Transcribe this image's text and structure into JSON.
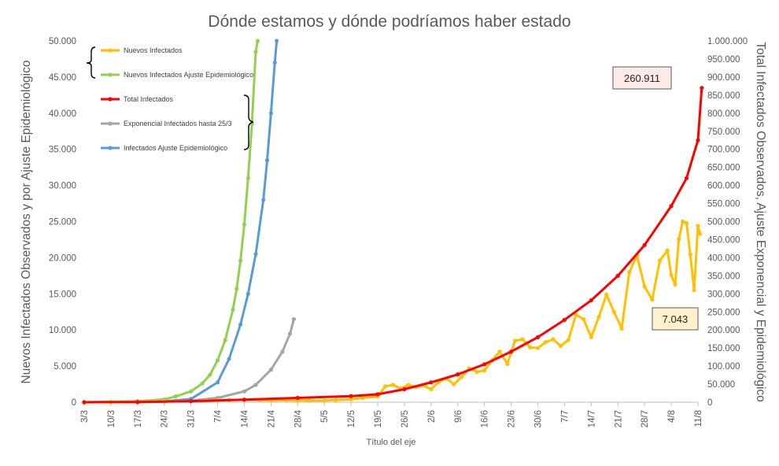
{
  "chart_data": {
    "type": "line",
    "title": "Dónde estamos y dónde podríamos haber estado",
    "xlabel": "Título del eje",
    "ylabel_left": "Nuevos Infectados Observados y por Ajuste Epidemiológico",
    "ylabel_right": "Total Infectados Observados, Ajuste Exponencial y Epidemiológico",
    "x_start": "2020-03-03",
    "x_end": "2020-08-11",
    "x_tick_labels": [
      "3/3",
      "10/3",
      "17/3",
      "24/3",
      "31/3",
      "7/4",
      "14/4",
      "21/4",
      "28/4",
      "5/5",
      "12/5",
      "19/5",
      "26/5",
      "2/6",
      "9/6",
      "16/6",
      "23/6",
      "30/6",
      "7/7",
      "14/7",
      "21/7",
      "28/7",
      "4/8",
      "11/8"
    ],
    "ylim_left": [
      0,
      50000
    ],
    "ylim_right": [
      0,
      1000000
    ],
    "y_ticks_left": [
      "0",
      "5.000",
      "10.000",
      "15.000",
      "20.000",
      "25.000",
      "30.000",
      "35.000",
      "40.000",
      "45.000",
      "50.000"
    ],
    "y_ticks_right": [
      "0",
      "50.000",
      "100.000",
      "150.000",
      "200.000",
      "250.000",
      "300.000",
      "350.000",
      "400.000",
      "450.000",
      "500.000",
      "550.000",
      "600.000",
      "650.000",
      "700.000",
      "750.000",
      "800.000",
      "850.000",
      "900.000",
      "950.000",
      "1.000.000"
    ],
    "legend_position": "top-left",
    "annotations": [
      {
        "text": "260.911",
        "series": "Total Infectados",
        "fill": "#fde9e7"
      },
      {
        "text": "7.043",
        "series": "Nuevos Infectados",
        "fill": "#fff2cc"
      }
    ],
    "series": [
      {
        "name": "Nuevos Infectados",
        "color": "#ffc000",
        "axis": "left",
        "points": [
          [
            "3/3",
            0
          ],
          [
            "10/3",
            30
          ],
          [
            "17/3",
            60
          ],
          [
            "24/3",
            110
          ],
          [
            "31/3",
            150
          ],
          [
            "4/4",
            200
          ],
          [
            "7/4",
            280
          ],
          [
            "10/4",
            300
          ],
          [
            "14/4",
            350
          ],
          [
            "18/4",
            300
          ],
          [
            "21/4",
            250
          ],
          [
            "25/4",
            280
          ],
          [
            "28/4",
            250
          ],
          [
            "1/5",
            230
          ],
          [
            "5/5",
            250
          ],
          [
            "8/5",
            300
          ],
          [
            "12/5",
            400
          ],
          [
            "15/5",
            600
          ],
          [
            "19/5",
            800
          ],
          [
            "21/5",
            2200
          ],
          [
            "23/5",
            2400
          ],
          [
            "25/5",
            1900
          ],
          [
            "27/5",
            2400
          ],
          [
            "29/5",
            2100
          ],
          [
            "31/5",
            2300
          ],
          [
            "2/6",
            1800
          ],
          [
            "4/6",
            2800
          ],
          [
            "6/6",
            3300
          ],
          [
            "8/6",
            2500
          ],
          [
            "10/6",
            3500
          ],
          [
            "12/6",
            4700
          ],
          [
            "14/6",
            4200
          ],
          [
            "16/6",
            4400
          ],
          [
            "18/6",
            5800
          ],
          [
            "20/6",
            7000
          ],
          [
            "22/6",
            5300
          ],
          [
            "24/6",
            8500
          ],
          [
            "26/6",
            8700
          ],
          [
            "28/6",
            7600
          ],
          [
            "30/6",
            7500
          ],
          [
            "2/7",
            8300
          ],
          [
            "4/7",
            8700
          ],
          [
            "6/7",
            7800
          ],
          [
            "8/7",
            8600
          ],
          [
            "10/7",
            12100
          ],
          [
            "12/7",
            11500
          ],
          [
            "14/7",
            9000
          ],
          [
            "16/7",
            11800
          ],
          [
            "18/7",
            14900
          ],
          [
            "20/7",
            12500
          ],
          [
            "22/7",
            10200
          ],
          [
            "24/7",
            18000
          ],
          [
            "26/7",
            20300
          ],
          [
            "28/7",
            16000
          ],
          [
            "30/7",
            14200
          ],
          [
            "1/8",
            19600
          ],
          [
            "3/8",
            21000
          ],
          [
            "4/8",
            17600
          ],
          [
            "5/8",
            16300
          ],
          [
            "6/8",
            22600
          ],
          [
            "7/8",
            25000
          ],
          [
            "8/8",
            24800
          ],
          [
            "9/8",
            20400
          ],
          [
            "10/8",
            15500
          ],
          [
            "11/8",
            24400
          ],
          [
            "11/8b",
            23300
          ]
        ]
      },
      {
        "name": "Nuevos Infectados Ajuste Epidemiológico",
        "color": "#92d050",
        "axis": "left",
        "points": [
          [
            "3/3",
            0
          ],
          [
            "10/3",
            60
          ],
          [
            "17/3",
            150
          ],
          [
            "24/3",
            400
          ],
          [
            "27/3",
            800
          ],
          [
            "31/3",
            1500
          ],
          [
            "3/4",
            2600
          ],
          [
            "5/4",
            3800
          ],
          [
            "7/4",
            5800
          ],
          [
            "9/4",
            8600
          ],
          [
            "11/4",
            12800
          ],
          [
            "12/4",
            15700
          ],
          [
            "13/4",
            19600
          ],
          [
            "14/4",
            24600
          ],
          [
            "15/4",
            31000
          ],
          [
            "16/4",
            38500
          ],
          [
            "17/4",
            48500
          ],
          [
            "17.5/4",
            50000
          ]
        ]
      },
      {
        "name": "Total Infectados",
        "color": "#ff0000",
        "axis": "right",
        "points": [
          [
            "3/3",
            0
          ],
          [
            "17/3",
            500
          ],
          [
            "31/3",
            3000
          ],
          [
            "14/4",
            7000
          ],
          [
            "28/4",
            12000
          ],
          [
            "12/5",
            17000
          ],
          [
            "19/5",
            22000
          ],
          [
            "26/5",
            36000
          ],
          [
            "2/6",
            55000
          ],
          [
            "9/6",
            77000
          ],
          [
            "16/6",
            105000
          ],
          [
            "23/6",
            140000
          ],
          [
            "30/6",
            180000
          ],
          [
            "7/7",
            228000
          ],
          [
            "14/7",
            282000
          ],
          [
            "21/7",
            350000
          ],
          [
            "28/7",
            435000
          ],
          [
            "4/8",
            543000
          ],
          [
            "8/8",
            620000
          ],
          [
            "11/8",
            725000
          ],
          [
            "12/8",
            870000
          ]
        ]
      },
      {
        "name": "Exponencial Infectados hasta 25/3",
        "color": "#a5a5a5",
        "axis": "right",
        "points": [
          [
            "3/3",
            0
          ],
          [
            "17/3",
            300
          ],
          [
            "24/3",
            1500
          ],
          [
            "31/3",
            4500
          ],
          [
            "7/4",
            12000
          ],
          [
            "14/4",
            30000
          ],
          [
            "17/4",
            48000
          ],
          [
            "21/4",
            90000
          ],
          [
            "24/4",
            140000
          ],
          [
            "26/4",
            190000
          ],
          [
            "27/4",
            230000
          ]
        ]
      },
      {
        "name": "Infectados Ajuste Epidemiológico",
        "color": "#5b9bd5",
        "axis": "right",
        "points": [
          [
            "3/3",
            0
          ],
          [
            "17/3",
            600
          ],
          [
            "24/3",
            2500
          ],
          [
            "31/3",
            9000
          ],
          [
            "7/4",
            55000
          ],
          [
            "10/4",
            120000
          ],
          [
            "13/4",
            215000
          ],
          [
            "15/4",
            300000
          ],
          [
            "17/4",
            410000
          ],
          [
            "19/4",
            560000
          ],
          [
            "20/4",
            670000
          ],
          [
            "21/4",
            800000
          ],
          [
            "22/4",
            940000
          ],
          [
            "22.5/4",
            1000000
          ]
        ]
      }
    ]
  }
}
